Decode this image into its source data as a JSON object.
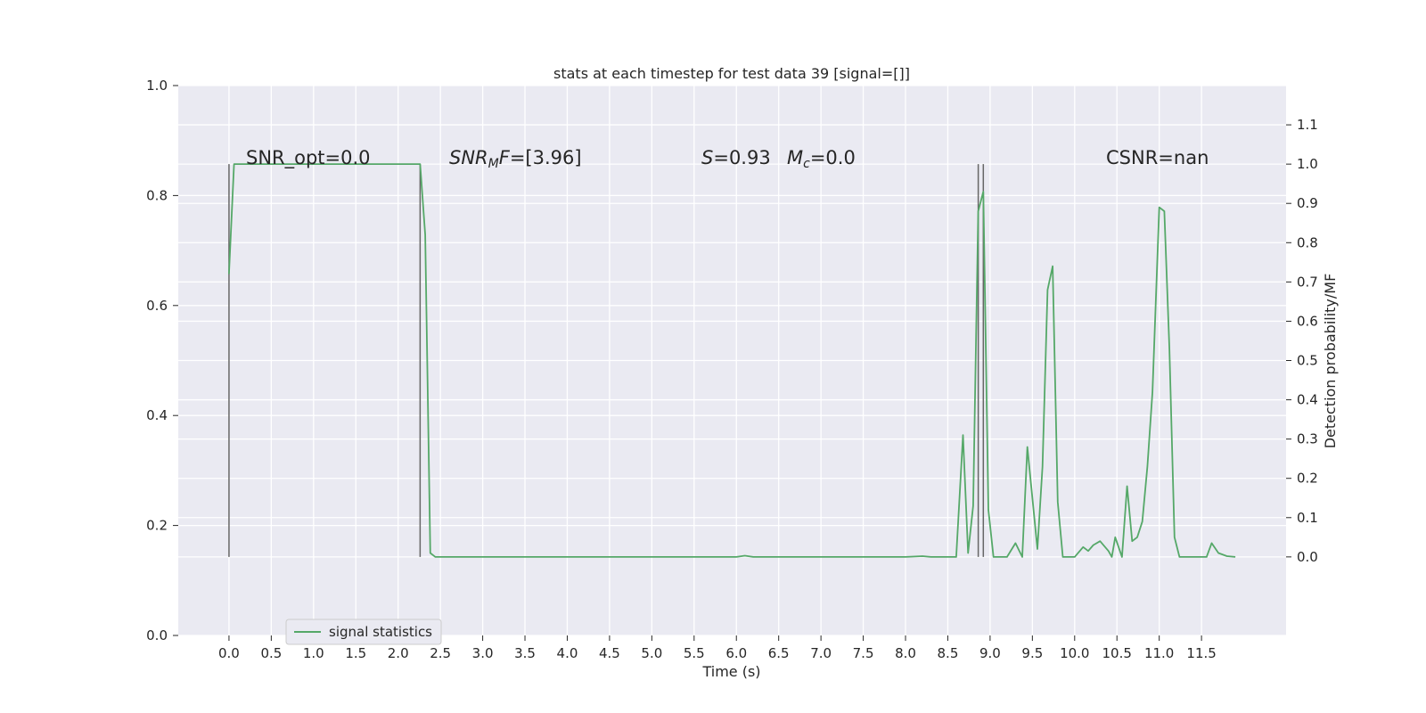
{
  "chart_data": {
    "type": "line",
    "title": "stats at each timestep for test data 39 [signal=[]]",
    "xlabel": "Time (s)",
    "ylabel": "",
    "y2label": "Detection probability/MF",
    "xlim": [
      -0.6,
      12.5
    ],
    "ylim": [
      0,
      1
    ],
    "y2lim": [
      -0.2,
      1.2
    ],
    "grid": true,
    "legend_placement": "lower-left",
    "x_ticks": [
      "0.0",
      "0.5",
      "1.0",
      "1.5",
      "2.0",
      "2.5",
      "3.0",
      "3.5",
      "4.0",
      "4.5",
      "5.0",
      "5.5",
      "6.0",
      "6.5",
      "7.0",
      "7.5",
      "8.0",
      "8.5",
      "9.0",
      "9.5",
      "10.0",
      "10.5",
      "11.0",
      "11.5"
    ],
    "y_ticks": [
      "0.0",
      "0.2",
      "0.4",
      "0.6",
      "0.8",
      "1.0"
    ],
    "y2_ticks": [
      "0.0",
      "0.1",
      "0.2",
      "0.3",
      "0.4",
      "0.5",
      "0.6",
      "0.7",
      "0.8",
      "0.9",
      "1.0",
      "1.1"
    ],
    "annotations": {
      "snr_opt": "SNR_opt=0.0",
      "snr_mf_var": "SNR",
      "snr_mf_sub": "M",
      "snr_mf_rest": "F=[3.96]",
      "s_var": "S",
      "s_rest": "=0.93",
      "mc_var": "M",
      "mc_sub": "c",
      "mc_rest": "=0.0",
      "csnr": "CSNR=nan"
    },
    "vlines": [
      0.0,
      2.26,
      8.86,
      8.92
    ],
    "series": [
      {
        "name": "signal statistics",
        "color": "#55a868",
        "x": [
          0.0,
          0.06,
          0.12,
          0.18,
          0.25,
          0.5,
          1.0,
          1.5,
          2.0,
          2.2,
          2.26,
          2.32,
          2.38,
          2.44,
          2.6,
          3.0,
          4.0,
          5.0,
          6.0,
          6.1,
          6.2,
          7.0,
          8.0,
          8.2,
          8.3,
          8.6,
          8.68,
          8.74,
          8.8,
          8.86,
          8.92,
          8.98,
          9.04,
          9.1,
          9.2,
          9.3,
          9.38,
          9.44,
          9.56,
          9.62,
          9.68,
          9.74,
          9.8,
          9.86,
          9.92,
          10.0,
          10.1,
          10.16,
          10.22,
          10.3,
          10.4,
          10.44,
          10.48,
          10.56,
          10.62,
          10.68,
          10.74,
          10.8,
          10.86,
          10.92,
          11.0,
          11.06,
          11.12,
          11.18,
          11.24,
          11.3,
          11.4,
          11.5,
          11.56,
          11.62,
          11.7,
          11.8,
          11.9
        ],
        "y": [
          0.72,
          1.0,
          1.0,
          1.0,
          1.0,
          1.0,
          1.0,
          1.0,
          1.0,
          1.0,
          1.0,
          0.82,
          0.01,
          0.0,
          0.0,
          0.0,
          0.0,
          0.0,
          0.0,
          0.003,
          0.0,
          0.0,
          0.0,
          0.002,
          0.0,
          0.0,
          0.31,
          0.01,
          0.13,
          0.88,
          0.93,
          0.12,
          0.0,
          0.0,
          0.0,
          0.035,
          0.0,
          0.28,
          0.02,
          0.23,
          0.68,
          0.74,
          0.14,
          0.0,
          0.0,
          0.0,
          0.025,
          0.015,
          0.03,
          0.04,
          0.015,
          0.0,
          0.05,
          0.0,
          0.18,
          0.04,
          0.05,
          0.09,
          0.23,
          0.42,
          0.89,
          0.88,
          0.53,
          0.05,
          0.0,
          0.0,
          0.0,
          0.0,
          0.0,
          0.035,
          0.01,
          0.002,
          0.0
        ]
      }
    ]
  }
}
